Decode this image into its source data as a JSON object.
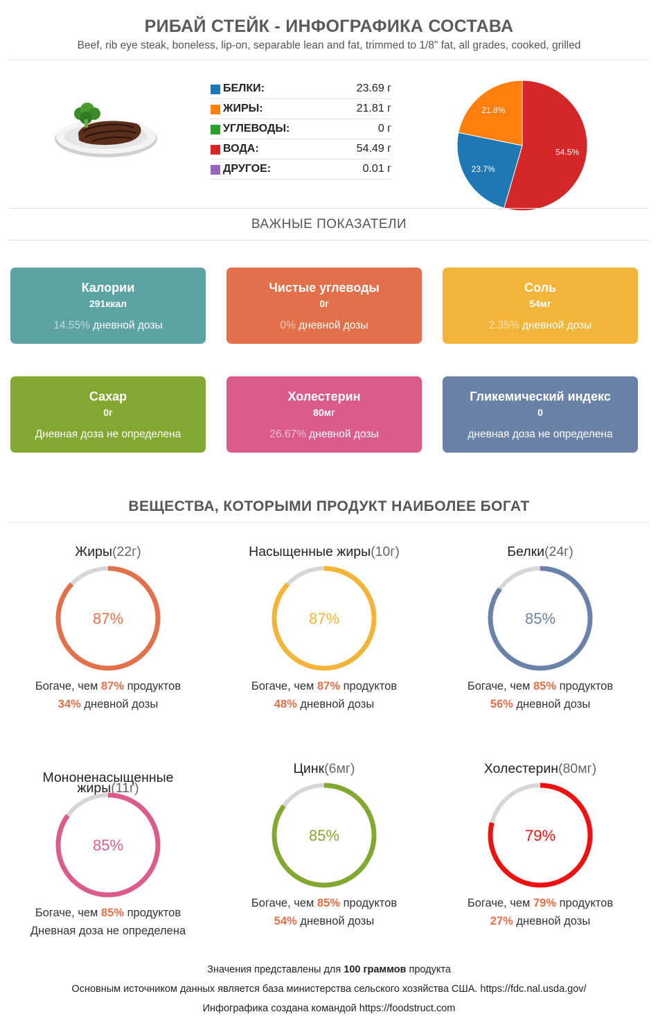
{
  "header": {
    "title": "РИБАЙ СТЕЙК - ИНФОГРАФИКА СОСТАВА",
    "subtitle": "Beef, rib eye steak, boneless, lip-on, separable lean and fat, trimmed to 1/8\" fat, all grades, cooked, grilled"
  },
  "composition": [
    {
      "name": "БЕЛКИ:",
      "value": "23.69 г",
      "color": "#1f77b4"
    },
    {
      "name": "ЖИРЫ:",
      "value": "21.81 г",
      "color": "#ff7f0e"
    },
    {
      "name": "УГЛЕВОДЫ:",
      "value": "0 г",
      "color": "#2ca02c"
    },
    {
      "name": "ВОДА:",
      "value": "54.49 г",
      "color": "#d62728"
    },
    {
      "name": "ДРУГОЕ:",
      "value": "0.01 г",
      "color": "#9467bd"
    }
  ],
  "chart_data": {
    "type": "pie",
    "slices": [
      {
        "value": 54.5,
        "label": "54.5%",
        "color": "#d62728"
      },
      {
        "value": 23.7,
        "label": "23.7%",
        "color": "#1f77b4"
      },
      {
        "value": 21.8,
        "label": "21.8%",
        "color": "#ff7f0e"
      }
    ]
  },
  "important": {
    "title": "ВАЖНЫЕ ПОКАЗАТЕЛИ",
    "cards": [
      {
        "name": "Калории",
        "value": "291ккал",
        "pct": "14.55%",
        "dose_text": " дневной дозы",
        "color": "#5ea3a3"
      },
      {
        "name": "Чистые углеводы",
        "value": "0г",
        "pct": "0%",
        "dose_text": " дневной дозы",
        "color": "#e2704b"
      },
      {
        "name": "Соль",
        "value": "54мг",
        "pct": "2.35%",
        "dose_text": " дневной дозы",
        "color": "#f2b53a"
      },
      {
        "name": "Сахар",
        "value": "0г",
        "pct": "",
        "dose_text": "Дневная доза не определена",
        "color": "#83a832"
      },
      {
        "name": "Холестерин",
        "value": "80мг",
        "pct": "26.67%",
        "dose_text": " дневной дозы",
        "color": "#db5c8b"
      },
      {
        "name": "Гликемический индекс",
        "value": "0",
        "pct": "",
        "dose_text": "дневная доза не определена",
        "color": "#6b82a8"
      }
    ]
  },
  "rich": {
    "title": "ВЕЩЕСТВА, КОТОРЫМИ ПРОДУКТ НАИБОЛЕЕ БОГАТ",
    "richer_prefix": "Богаче, чем ",
    "richer_suffix": " продуктов",
    "dose_suffix": " дневной дозы",
    "items": [
      {
        "name": "Жиры",
        "amount": "(22г)",
        "percent": 87,
        "percent_label": "87%",
        "dose": "34%",
        "dose_na": "",
        "color": "#e2704b"
      },
      {
        "name": "Насыщенные жиры",
        "amount": "(10г)",
        "percent": 87,
        "percent_label": "87%",
        "dose": "48%",
        "dose_na": "",
        "color": "#f2b53a"
      },
      {
        "name": "Белки",
        "amount": "(24г)",
        "percent": 85,
        "percent_label": "85%",
        "dose": "56%",
        "dose_na": "",
        "color": "#6b82a8"
      },
      {
        "name": "Мононенасыщенные жиры",
        "amount": "(11г)",
        "percent": 85,
        "percent_label": "85%",
        "dose": "",
        "dose_na": "Дневная доза не определена",
        "color": "#db5c8b"
      },
      {
        "name": "Цинк",
        "amount": "(6мг)",
        "percent": 85,
        "percent_label": "85%",
        "dose": "54%",
        "dose_na": "",
        "color": "#83a832"
      },
      {
        "name": "Холестерин",
        "amount": "(80мг)",
        "percent": 79,
        "percent_label": "79%",
        "dose": "27%",
        "dose_na": "",
        "color": "#ee1111"
      }
    ]
  },
  "footer": {
    "line1_pre": "Значения представлены для ",
    "line1_bold": "100 граммов",
    "line1_post": " продукта",
    "line2": "Основным источником данных является база министерства сельского хозяйства США. https://fdc.nal.usda.gov/",
    "line3": "Инфографика создана командой https://foodstruct.com"
  }
}
